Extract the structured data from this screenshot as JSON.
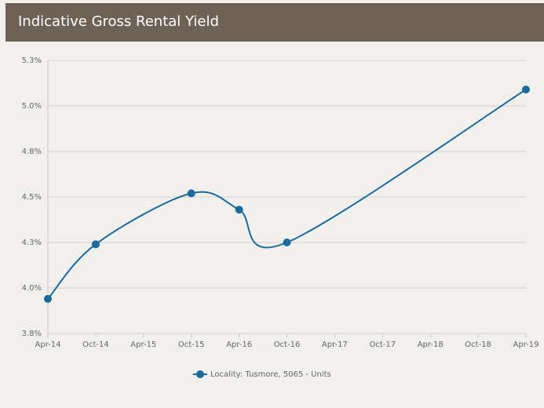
{
  "chart_data": {
    "type": "line",
    "title": "Indicative Gross Rental Yield",
    "xticks": [
      "Apr-14",
      "Oct-14",
      "Apr-15",
      "Oct-15",
      "Apr-16",
      "Oct-16",
      "Apr-17",
      "Oct-17",
      "Apr-18",
      "Oct-18",
      "Apr-19"
    ],
    "x": [
      "Apr-14",
      "Oct-14",
      "Oct-15",
      "Apr-16",
      "Oct-16",
      "Apr-19"
    ],
    "series": [
      {
        "name": "Locality: Tusmore, 5065 - Units",
        "color": "#1a6b9c",
        "values": [
          3.94,
          4.24,
          4.52,
          4.43,
          4.25,
          5.09
        ]
      }
    ],
    "ylim": [
      3.75,
      5.25
    ],
    "yticks": [
      {
        "value": 3.75,
        "label": "3.8%"
      },
      {
        "value": 4.0,
        "label": "4.0%"
      },
      {
        "value": 4.25,
        "label": "4.3%"
      },
      {
        "value": 4.5,
        "label": "4.5%"
      },
      {
        "value": 4.75,
        "label": "4.8%"
      },
      {
        "value": 5.0,
        "label": "5.0%"
      },
      {
        "value": 5.25,
        "label": "5.3%"
      }
    ],
    "grid": true,
    "legend": "bottom"
  }
}
